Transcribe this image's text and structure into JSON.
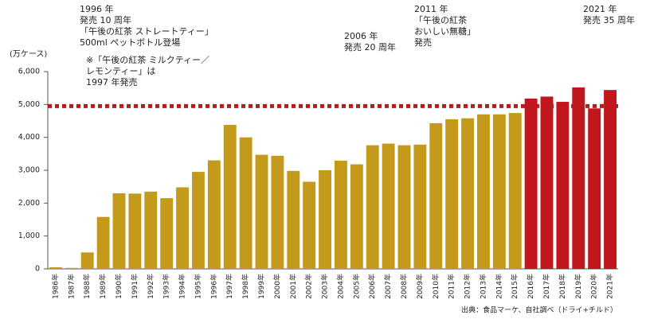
{
  "chart_data": {
    "type": "bar",
    "y_label": "(万ケース)",
    "source": "出典：食品マーケ、自社調べ（ドライ+チルド）",
    "categories": [
      "1986年",
      "1987年",
      "1988年",
      "1989年",
      "1990年",
      "1991年",
      "1992年",
      "1993年",
      "1994年",
      "1995年",
      "1996年",
      "1997年",
      "1998年",
      "1999年",
      "2000年",
      "2001年",
      "2002年",
      "2003年",
      "2004年",
      "2005年",
      "2006年",
      "2007年",
      "2008年",
      "2009年",
      "2010年",
      "2011年",
      "2012年",
      "2013年",
      "2014年",
      "2015年",
      "2016年",
      "2017年",
      "2018年",
      "2019年",
      "2020年",
      "2021年"
    ],
    "values": [
      50,
      30,
      500,
      1580,
      2300,
      2290,
      2350,
      2150,
      2480,
      2950,
      3300,
      4380,
      4000,
      3470,
      3440,
      2980,
      2650,
      3000,
      3290,
      3180,
      3760,
      3810,
      3760,
      3780,
      4430,
      4550,
      4580,
      4700,
      4700,
      4740,
      5180,
      5240,
      5080,
      5520,
      4880,
      5440
    ],
    "colors": [
      "#c39a1a",
      "#c39a1a",
      "#c39a1a",
      "#c39a1a",
      "#c39a1a",
      "#c39a1a",
      "#c39a1a",
      "#c39a1a",
      "#c39a1a",
      "#c39a1a",
      "#c39a1a",
      "#c39a1a",
      "#c39a1a",
      "#c39a1a",
      "#c39a1a",
      "#c39a1a",
      "#c39a1a",
      "#c39a1a",
      "#c39a1a",
      "#c39a1a",
      "#c39a1a",
      "#c39a1a",
      "#c39a1a",
      "#c39a1a",
      "#c39a1a",
      "#c39a1a",
      "#c39a1a",
      "#c39a1a",
      "#c39a1a",
      "#c39a1a",
      "#c0161c",
      "#c0161c",
      "#c0161c",
      "#c0161c",
      "#c0161c",
      "#c0161c"
    ],
    "reference_line": {
      "value": 4950,
      "color": "#c0161c"
    },
    "ylim": [
      0,
      6000
    ],
    "yticks": [
      0,
      {
        "value": 1000,
        "label": "1,000"
      },
      {
        "value": 2000,
        "label": "2,000"
      },
      {
        "value": 3000,
        "label": "3,000"
      },
      {
        "value": 4000,
        "label": "4,000"
      },
      {
        "value": 5000,
        "label": "5,000"
      },
      {
        "value": 6000,
        "label": "6,000"
      }
    ],
    "annotations": [
      {
        "lines": [
          "1996 年",
          "発売 10 周年",
          "「午後の紅茶 ストレートティー」",
          "500ml ペットボトル登場"
        ],
        "color": "#d7191f"
      },
      {
        "lines": [
          "※「午後の紅茶 ミルクティー／",
          "レモンティー」は",
          "1997 年発売"
        ],
        "color": "#222222"
      },
      {
        "lines": [
          "2006 年",
          "発売 20 周年"
        ],
        "color": "#d7191f"
      },
      {
        "lines": [
          "2011 年",
          "「午後の紅茶",
          "おいしい無糖」",
          "発売"
        ],
        "color": "#d7191f"
      },
      {
        "lines": [
          "2021 年",
          "発売 35 周年"
        ],
        "color": "#d7191f"
      }
    ]
  }
}
